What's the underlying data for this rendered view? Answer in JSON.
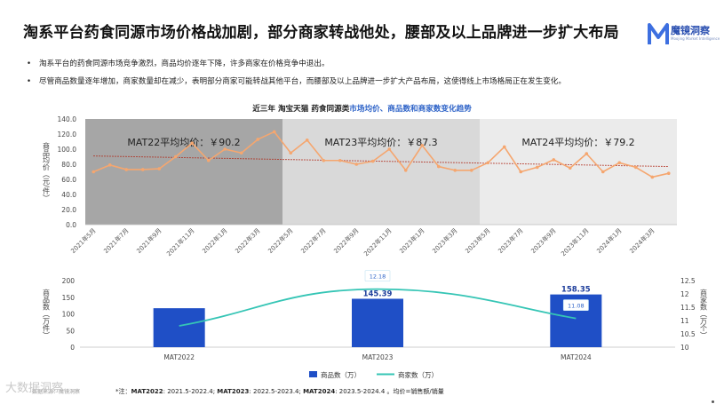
{
  "title": "淘系平台药食同源市场价格战加剧，部分商家转战他处，腰部及以上品牌进一步扩大布局",
  "logo": {
    "name": "魔镜洞察",
    "tagline": "Moojing Market Intelligence"
  },
  "bullets": [
    "淘系平台的药食同源市场竞争激烈，商品均价逐年下降，许多商家在价格竞争中退出。",
    "尽管商品数量逐年增加，商家数量却在减少，表明部分商家可能转战其他平台，而腰部及以上品牌进一步扩大产品布局，这使得线上市场格局正在发生变化。"
  ],
  "chart_title": {
    "prefix": "近三年 淘宝天猫 药食同源类",
    "highlight": "市场均价、商品数和商家数变化趋势"
  },
  "colors": {
    "line": "#f5a66f",
    "trend": "#b02a1a",
    "bar": "#1f4fc6",
    "merchants": "#35c5b5",
    "mat22_bg": "#a6a6a6",
    "mat23_bg": "#d9d9d9",
    "mat24_bg": "#ebebeb"
  },
  "footnote": {
    "prefix": "*注：",
    "mat22_label": "MAT2022",
    "mat22_range": ": 2021.5-2022.4; ",
    "mat23_label": "MAT2023",
    "mat23_range": ": 2022.5-2023.4; ",
    "mat24_label": "MAT2024",
    "mat24_range": ": 2023.5-2024.4 。均价=销售额/销量"
  },
  "source": "数据来源：魔镜洞察",
  "watermark": "大数据洞察",
  "chart_data": [
    {
      "type": "line",
      "ylabel": "商品均价（元/件）",
      "ylim": [
        0,
        140
      ],
      "yticks": [
        "0.0",
        "20.0",
        "40.0",
        "60.0",
        "80.0",
        "100.0",
        "120.0",
        "140.0"
      ],
      "x": [
        "2021年5月",
        "2021年6月",
        "2021年7月",
        "2021年8月",
        "2021年9月",
        "2021年10月",
        "2021年11月",
        "2021年12月",
        "2022年1月",
        "2022年2月",
        "2022年3月",
        "2022年4月",
        "2022年5月",
        "2022年6月",
        "2022年7月",
        "2022年8月",
        "2022年9月",
        "2022年10月",
        "2022年11月",
        "2022年12月",
        "2023年1月",
        "2023年2月",
        "2023年3月",
        "2023年4月",
        "2023年5月",
        "2023年6月",
        "2023年7月",
        "2023年8月",
        "2023年9月",
        "2023年10月",
        "2023年11月",
        "2023年12月",
        "2024年1月",
        "2024年2月",
        "2024年3月",
        "2024年4月"
      ],
      "x_tick_labels": [
        "2021年5月",
        "2021年7月",
        "2021年9月",
        "2021年11月",
        "2022年1月",
        "2022年3月",
        "2022年5月",
        "2022年7月",
        "2022年9月",
        "2022年11月",
        "2023年1月",
        "2023年3月",
        "2023年5月",
        "2023年7月",
        "2023年9月",
        "2023年11月",
        "2024年1月",
        "2024年3月"
      ],
      "values": [
        70,
        79,
        73,
        73,
        74,
        90,
        108,
        85,
        100,
        95,
        113,
        123,
        95,
        112,
        85,
        85,
        80,
        84,
        100,
        72,
        105,
        77,
        72,
        72,
        82,
        103,
        70,
        76,
        86,
        75,
        94,
        70,
        82,
        76,
        63,
        68
      ],
      "trendline": {
        "style": "dotted",
        "start": 91,
        "end": 77
      },
      "periods": [
        {
          "label": "MAT22平均均价：￥90.2",
          "value": 90.2,
          "from": 0,
          "to": 11
        },
        {
          "label": "MAT23平均均价：￥87.3",
          "value": 87.3,
          "from": 12,
          "to": 23
        },
        {
          "label": "MAT24平均均价：￥79.2",
          "value": 79.2,
          "from": 24,
          "to": 35
        }
      ]
    },
    {
      "type": "bar",
      "categories": [
        "MAT2022",
        "MAT2023",
        "MAT2024"
      ],
      "series": [
        {
          "name": "商品数（万）",
          "axis": "left",
          "values": [
            117,
            145.39,
            158.35
          ],
          "data_labels": [
            "",
            "145.39",
            "158.35"
          ]
        },
        {
          "name": "商家数（万）",
          "type": "line",
          "smooth": true,
          "axis": "right",
          "values": [
            10.8,
            12.18,
            11.08
          ],
          "data_labels": [
            "",
            "12.18",
            "11.08"
          ]
        }
      ],
      "ylabel_left": "商品数（万件）",
      "ylim_left": [
        0,
        200
      ],
      "yticks_left": [
        "0",
        "50",
        "100",
        "150",
        "200"
      ],
      "ylabel_right": "商家数（万个）",
      "ylim_right": [
        10,
        12.5
      ],
      "yticks_right": [
        "10",
        "10.5",
        "11",
        "11.5",
        "12",
        "12.5"
      ],
      "legend": [
        "商品数（万）",
        "商家数（万）"
      ],
      "legend_position": "bottom"
    }
  ]
}
